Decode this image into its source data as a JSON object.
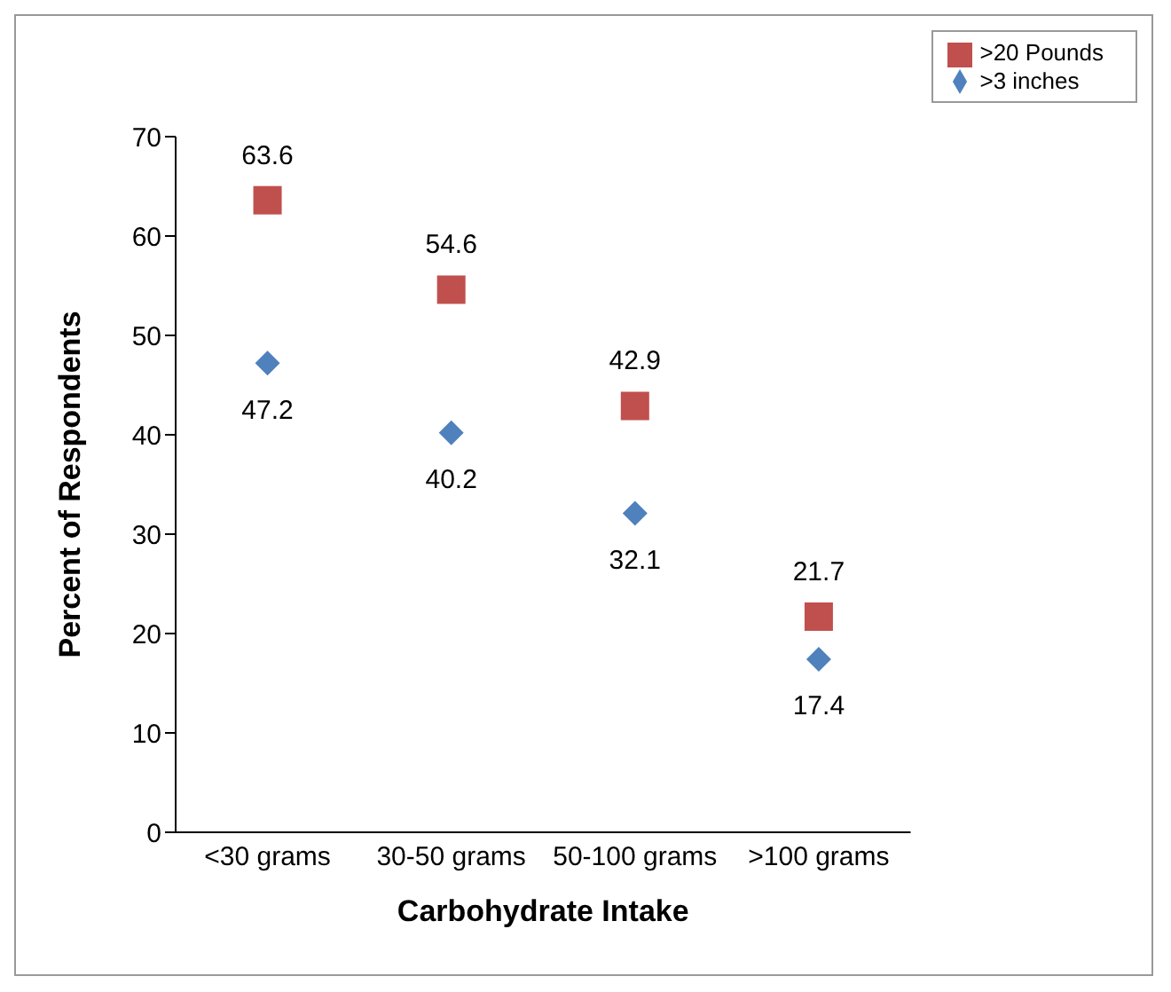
{
  "chart_data": {
    "type": "scatter",
    "xlabel": "Carbohydrate Intake",
    "ylabel": "Percent of Respondents",
    "categories": [
      "<30 grams",
      "30-50 grams",
      "50-100 grams",
      ">100 grams"
    ],
    "series": [
      {
        "name": ">3 inches",
        "color": "#4f81bd",
        "marker": "diamond",
        "values": [
          47.2,
          40.2,
          32.1,
          17.4
        ]
      },
      {
        "name": ">20 Pounds",
        "color": "#c0504d",
        "marker": "square",
        "values": [
          63.6,
          54.6,
          42.9,
          21.7
        ]
      }
    ],
    "ylim": [
      0,
      70
    ],
    "yticks": [
      0,
      10,
      20,
      30,
      40,
      50,
      60,
      70
    ],
    "grid": false,
    "legend": "top right",
    "data_labels": true
  }
}
